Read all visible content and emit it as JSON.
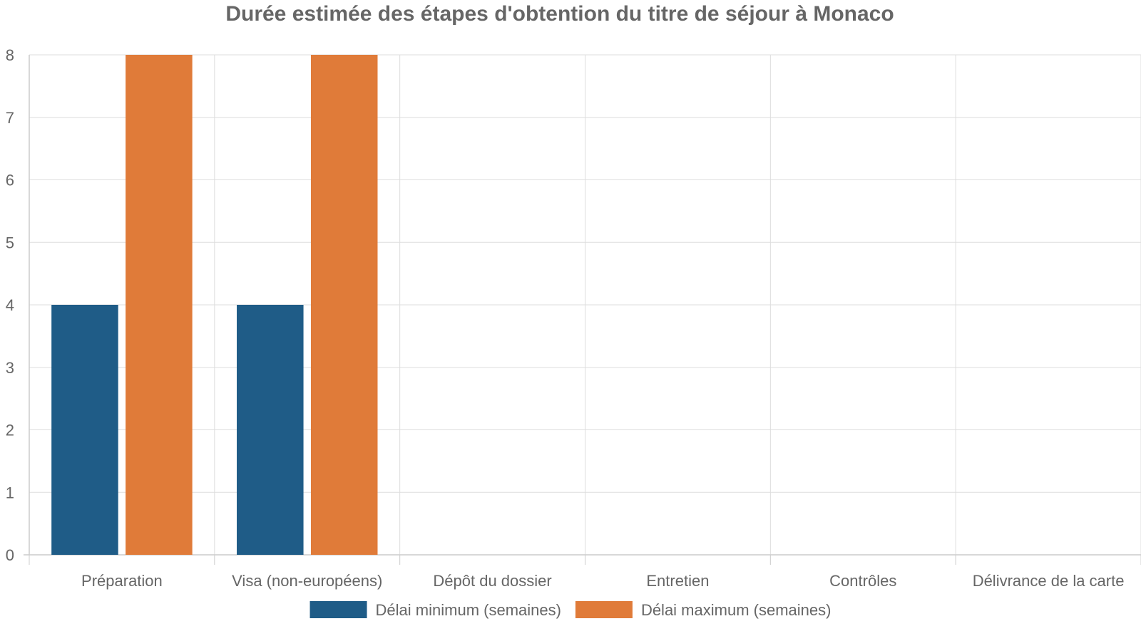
{
  "chart_data": {
    "type": "bar",
    "title": "Durée estimée des étapes d'obtention du titre de séjour à Monaco",
    "xlabel": "",
    "ylabel": "",
    "categories": [
      "Préparation",
      "Visa (non-européens)",
      "Dépôt du dossier",
      "Entretien",
      "Contrôles",
      "Délivrance de la carte"
    ],
    "series": [
      {
        "name": "Délai minimum (semaines)",
        "color": "#1f5c87",
        "values": [
          4,
          4,
          0,
          0,
          0,
          0
        ]
      },
      {
        "name": "Délai maximum (semaines)",
        "color": "#e07b39",
        "values": [
          8,
          8,
          0,
          0,
          0,
          0
        ]
      }
    ],
    "ylim": [
      0,
      8
    ],
    "yticks": [
      "0",
      "1",
      "2",
      "3",
      "4",
      "5",
      "6",
      "7",
      "8"
    ],
    "grid": true,
    "legend_position": "bottom"
  }
}
